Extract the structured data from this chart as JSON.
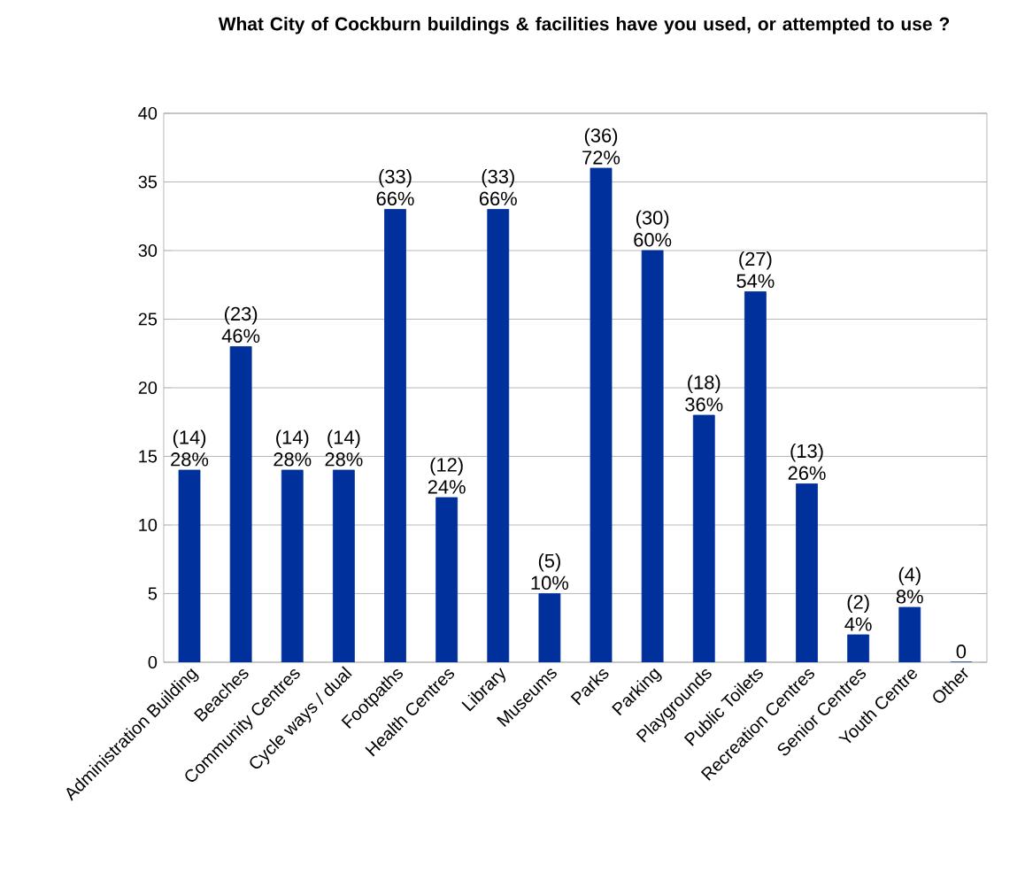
{
  "chart_data": {
    "type": "bar",
    "title": "What City of Cockburn buildings & facilities have you used, or attempted to use ?",
    "categories": [
      "Administration Building",
      "Beaches",
      "Community Centres",
      "Cycle ways / dual",
      "Footpaths",
      "Health Centres",
      "Library",
      "Museums",
      "Parks",
      "Parking",
      "Playgrounds",
      "Public Toilets",
      "Recreation Centres",
      "Senior Centres",
      "Youth Centre",
      "Other"
    ],
    "values": [
      14,
      23,
      14,
      14,
      33,
      12,
      33,
      5,
      36,
      30,
      18,
      27,
      13,
      2,
      4,
      0
    ],
    "value_labels": [
      "(14) 28%",
      "(23) 46%",
      "(14) 28%",
      "(14) 28%",
      "(33) 66%",
      "(12) 24%",
      "(33) 66%",
      "(5) 10%",
      "(36) 72%",
      "(30) 60%",
      "(18) 36%",
      "(27) 54%",
      "(13) 26%",
      "(2) 4%",
      "(4) 8%",
      "0"
    ],
    "color": "#00309c",
    "ylim": [
      0,
      40
    ],
    "yticks": [
      0,
      5,
      10,
      15,
      20,
      25,
      30,
      35,
      40
    ],
    "grid": "y"
  }
}
